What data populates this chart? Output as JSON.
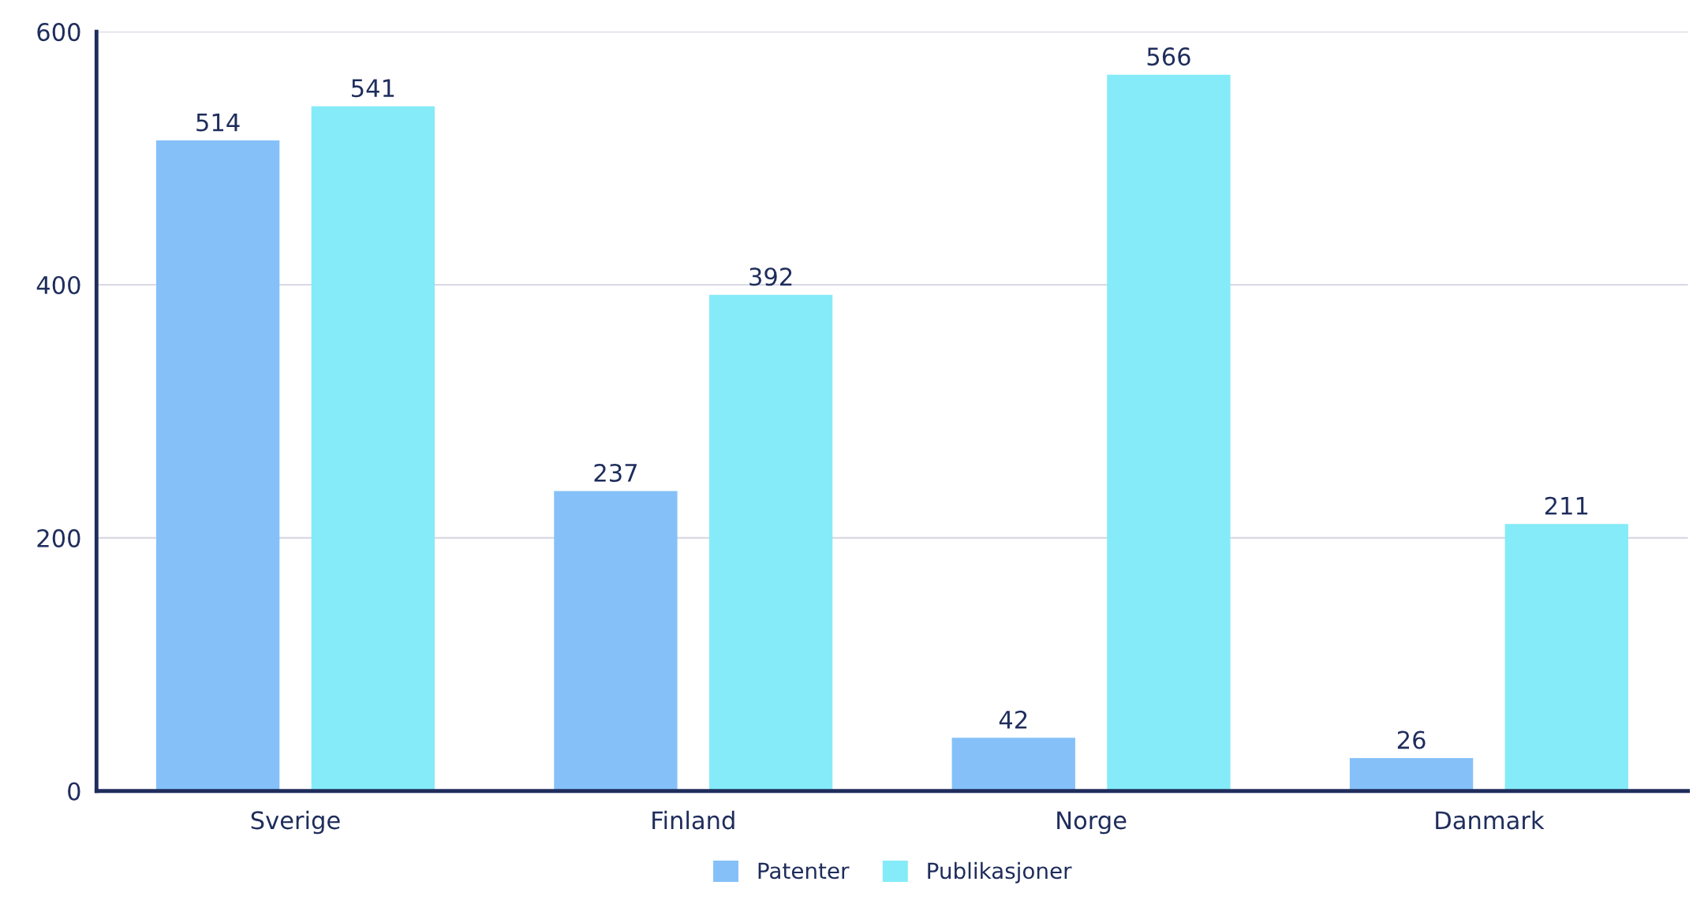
{
  "chart_data": {
    "type": "bar",
    "categories": [
      "Sverige",
      "Finland",
      "Norge",
      "Danmark"
    ],
    "series": [
      {
        "name": "Patenter",
        "color": "#85c1f8",
        "values": [
          514,
          237,
          42,
          26
        ]
      },
      {
        "name": "Publikasjoner",
        "color": "#85ebf8",
        "values": [
          541,
          392,
          566,
          211
        ]
      }
    ],
    "ylim": [
      0,
      600
    ],
    "yticks": [
      0,
      200,
      400,
      600
    ],
    "grid": "y",
    "legend": "bottom",
    "data_labels": true
  }
}
